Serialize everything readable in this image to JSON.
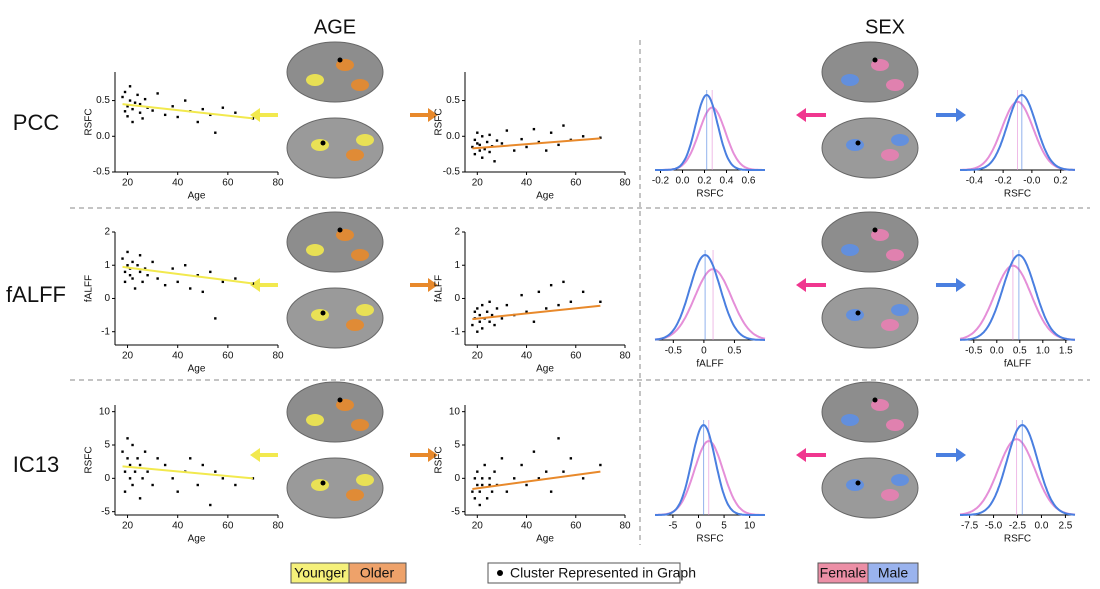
{
  "headers": {
    "age": "AGE",
    "sex": "SEX"
  },
  "row_labels": [
    "PCC",
    "fALFF",
    "IC13"
  ],
  "legend": {
    "age": [
      "Younger",
      "Older"
    ],
    "cluster": "Cluster Represented in Graph",
    "sex": [
      "Female",
      "Male"
    ]
  },
  "chart_data": [
    {
      "type": "scatter",
      "x_label": "Age",
      "y_label": "RSFC",
      "color": "#000000",
      "trend_color": "#f2e94e",
      "xlim": [
        15,
        80
      ],
      "xticks": [
        20,
        40,
        60,
        80
      ],
      "ylim": [
        -0.5,
        0.9
      ],
      "yticks": [
        -0.5,
        {
          "value": 0,
          "label": "0.0"
        },
        0.5
      ],
      "x": [
        18,
        19,
        19,
        20,
        20,
        21,
        21,
        22,
        22,
        23,
        24,
        25,
        25,
        26,
        27,
        28,
        30,
        32,
        35,
        38,
        40,
        43,
        45,
        48,
        50,
        53,
        55,
        58,
        63,
        70
      ],
      "values": [
        0.55,
        0.35,
        0.62,
        0.42,
        0.28,
        0.5,
        0.7,
        0.38,
        0.2,
        0.47,
        0.58,
        0.33,
        0.45,
        0.25,
        0.52,
        0.4,
        0.36,
        0.6,
        0.3,
        0.42,
        0.27,
        0.5,
        0.35,
        0.2,
        0.38,
        0.3,
        0.05,
        0.4,
        0.33,
        0.25
      ],
      "trend": {
        "x": [
          18,
          70
        ],
        "values": [
          0.45,
          0.25
        ]
      }
    },
    {
      "type": "scatter",
      "x_label": "Age",
      "y_label": "RSFC",
      "color": "#000000",
      "trend_color": "#e8892b",
      "xlim": [
        15,
        80
      ],
      "xticks": [
        20,
        40,
        60,
        80
      ],
      "ylim": [
        -0.5,
        0.9
      ],
      "yticks": [
        -0.5,
        {
          "value": 0,
          "label": "0.0"
        },
        0.5
      ],
      "x": [
        18,
        19,
        19,
        20,
        20,
        21,
        21,
        22,
        22,
        23,
        24,
        25,
        25,
        26,
        27,
        28,
        30,
        32,
        35,
        38,
        40,
        43,
        45,
        48,
        50,
        53,
        55,
        58,
        63,
        70
      ],
      "values": [
        -0.15,
        -0.05,
        -0.25,
        -0.1,
        0.05,
        -0.2,
        -0.12,
        -0.3,
        0.0,
        -0.18,
        -0.08,
        -0.22,
        0.02,
        -0.14,
        -0.35,
        -0.06,
        -0.1,
        0.08,
        -0.2,
        -0.04,
        -0.15,
        0.1,
        -0.08,
        -0.2,
        0.05,
        -0.12,
        0.15,
        -0.05,
        0.0,
        -0.02
      ],
      "trend": {
        "x": [
          18,
          70
        ],
        "values": [
          -0.17,
          -0.03
        ]
      }
    },
    {
      "type": "density",
      "x_label": "RSFC",
      "xlim": [
        -0.25,
        0.75
      ],
      "xticks": [
        -0.2,
        {
          "value": 0,
          "label": "0.0"
        },
        0.2,
        0.4,
        0.6
      ],
      "series": [
        {
          "name": "Female",
          "color": "#e58fd8",
          "mean": 0.27,
          "sd": 0.12
        },
        {
          "name": "Male",
          "color": "#4a7fe0",
          "mean": 0.22,
          "sd": 0.1
        }
      ]
    },
    {
      "type": "density",
      "x_label": "RSFC",
      "xlim": [
        -0.5,
        0.3
      ],
      "xticks": [
        -0.4,
        -0.2,
        {
          "value": 0,
          "label": "-0.0"
        },
        0.2
      ],
      "series": [
        {
          "name": "Female",
          "color": "#e58fd8",
          "mean": -0.1,
          "sd": 0.11
        },
        {
          "name": "Male",
          "color": "#4a7fe0",
          "mean": -0.07,
          "sd": 0.1
        }
      ]
    },
    {
      "type": "scatter",
      "x_label": "Age",
      "y_label": "fALFF",
      "color": "#000000",
      "trend_color": "#f2e94e",
      "xlim": [
        15,
        80
      ],
      "xticks": [
        20,
        40,
        60,
        80
      ],
      "ylim": [
        -1.4,
        2
      ],
      "yticks": [
        -1,
        0,
        1,
        2
      ],
      "x": [
        18,
        19,
        19,
        20,
        20,
        21,
        21,
        22,
        22,
        23,
        24,
        25,
        25,
        26,
        27,
        28,
        30,
        32,
        35,
        38,
        40,
        43,
        45,
        48,
        50,
        53,
        55,
        58,
        63,
        70
      ],
      "values": [
        1.2,
        0.8,
        0.5,
        1.0,
        1.4,
        0.7,
        0.9,
        1.1,
        0.6,
        0.3,
        1.0,
        0.8,
        1.3,
        0.5,
        0.9,
        0.7,
        1.1,
        0.6,
        0.4,
        0.9,
        0.5,
        1.0,
        0.3,
        0.7,
        0.2,
        0.8,
        -0.6,
        0.5,
        0.6,
        0.45
      ],
      "trend": {
        "x": [
          18,
          70
        ],
        "values": [
          0.95,
          0.45
        ]
      }
    },
    {
      "type": "scatter",
      "x_label": "Age",
      "y_label": "fALFF",
      "color": "#000000",
      "trend_color": "#e8892b",
      "xlim": [
        15,
        80
      ],
      "xticks": [
        20,
        40,
        60,
        80
      ],
      "ylim": [
        -1.4,
        2
      ],
      "yticks": [
        -1,
        0,
        1,
        2
      ],
      "x": [
        18,
        19,
        19,
        20,
        20,
        21,
        21,
        22,
        22,
        23,
        24,
        25,
        25,
        26,
        27,
        28,
        30,
        32,
        35,
        38,
        40,
        43,
        45,
        48,
        50,
        53,
        55,
        58,
        63,
        70
      ],
      "values": [
        -0.8,
        -0.4,
        -0.6,
        -1.0,
        -0.3,
        -0.7,
        -0.5,
        -0.2,
        -0.9,
        -0.6,
        -0.4,
        -0.7,
        -0.1,
        -0.5,
        -0.8,
        -0.3,
        -0.6,
        -0.2,
        -0.5,
        0.1,
        -0.4,
        -0.7,
        0.2,
        -0.3,
        0.4,
        -0.2,
        0.5,
        -0.1,
        0.2,
        -0.1
      ],
      "trend": {
        "x": [
          18,
          70
        ],
        "values": [
          -0.62,
          -0.22
        ]
      }
    },
    {
      "type": "density",
      "x_label": "fALFF",
      "xlim": [
        -0.8,
        1.0
      ],
      "xticks": [
        -0.5,
        0,
        0.5
      ],
      "series": [
        {
          "name": "Female",
          "color": "#e58fd8",
          "mean": 0.15,
          "sd": 0.3
        },
        {
          "name": "Male",
          "color": "#4a7fe0",
          "mean": 0.02,
          "sd": 0.25
        }
      ]
    },
    {
      "type": "density",
      "x_label": "fALFF",
      "xlim": [
        -0.8,
        1.7
      ],
      "xticks": [
        -0.5,
        {
          "value": 0,
          "label": "0.0"
        },
        0.5,
        {
          "value": 1,
          "label": "1.0"
        },
        1.5
      ],
      "series": [
        {
          "name": "Female",
          "color": "#e58fd8",
          "mean": 0.35,
          "sd": 0.4
        },
        {
          "name": "Male",
          "color": "#4a7fe0",
          "mean": 0.48,
          "sd": 0.35
        }
      ]
    },
    {
      "type": "scatter",
      "x_label": "Age",
      "y_label": "RSFC",
      "color": "#000000",
      "trend_color": "#f2e94e",
      "xlim": [
        15,
        80
      ],
      "xticks": [
        20,
        40,
        60,
        80
      ],
      "ylim": [
        -5.5,
        11
      ],
      "yticks": [
        -5,
        0,
        5,
        10
      ],
      "x": [
        18,
        19,
        19,
        20,
        20,
        21,
        21,
        22,
        22,
        23,
        24,
        25,
        25,
        26,
        27,
        28,
        30,
        32,
        35,
        38,
        40,
        43,
        45,
        48,
        50,
        53,
        55,
        58,
        63,
        70
      ],
      "values": [
        4,
        1,
        -2,
        3,
        6,
        0,
        2,
        -1,
        5,
        1,
        3,
        -3,
        2,
        0,
        4,
        1,
        -1,
        3,
        2,
        0,
        -2,
        1,
        3,
        -1,
        2,
        -4,
        1,
        0,
        -1,
        0
      ],
      "trend": {
        "x": [
          18,
          70
        ],
        "values": [
          1.8,
          0
        ]
      }
    },
    {
      "type": "scatter",
      "x_label": "Age",
      "y_label": "RSFC",
      "color": "#000000",
      "trend_color": "#e8892b",
      "xlim": [
        15,
        80
      ],
      "xticks": [
        20,
        40,
        60,
        80
      ],
      "ylim": [
        -5.5,
        11
      ],
      "yticks": [
        -5,
        0,
        5,
        10
      ],
      "x": [
        18,
        19,
        19,
        20,
        20,
        21,
        21,
        22,
        22,
        23,
        24,
        25,
        25,
        26,
        27,
        28,
        30,
        32,
        35,
        38,
        40,
        43,
        45,
        48,
        50,
        53,
        55,
        58,
        63,
        70
      ],
      "values": [
        -2,
        0,
        -3,
        -1,
        1,
        -4,
        -2,
        0,
        -1,
        2,
        -3,
        -1,
        0,
        -2,
        1,
        -1,
        3,
        -2,
        0,
        2,
        -1,
        4,
        0,
        1,
        -2,
        6,
        1,
        3,
        0,
        2
      ],
      "trend": {
        "x": [
          18,
          70
        ],
        "values": [
          -1.6,
          1
        ]
      }
    },
    {
      "type": "density",
      "x_label": "RSFC",
      "xlim": [
        -8.5,
        13
      ],
      "xticks": [
        -5,
        0,
        5,
        10
      ],
      "series": [
        {
          "name": "Female",
          "color": "#e58fd8",
          "mean": 2,
          "sd": 2.8
        },
        {
          "name": "Male",
          "color": "#4a7fe0",
          "mean": 1,
          "sd": 2.3
        }
      ]
    },
    {
      "type": "density",
      "x_label": "RSFC",
      "xlim": [
        -8.5,
        3.5
      ],
      "xticks": [
        -7.5,
        {
          "value": -5,
          "label": "-5.0"
        },
        -2.5,
        {
          "value": 0,
          "label": "0.0"
        },
        2.5
      ],
      "series": [
        {
          "name": "Female",
          "color": "#e58fd8",
          "mean": -2.6,
          "sd": 1.9
        },
        {
          "name": "Male",
          "color": "#4a7fe0",
          "mean": -2,
          "sd": 1.6
        }
      ]
    }
  ]
}
